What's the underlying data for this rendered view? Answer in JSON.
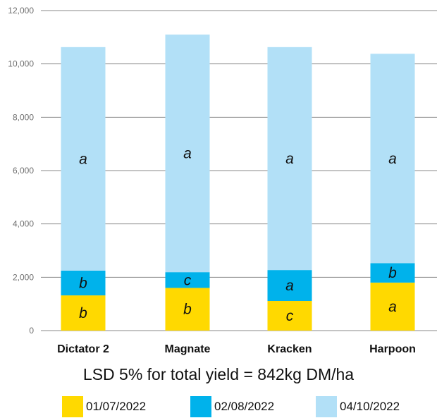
{
  "chart_data": {
    "type": "bar",
    "stacked": true,
    "categories": [
      "Dictator 2",
      "Magnate",
      "Kracken",
      "Harpoon"
    ],
    "series": [
      {
        "name": "01/07/2022",
        "color": "#FFD900",
        "values": [
          1320,
          1600,
          1110,
          1800
        ],
        "letters": [
          "b",
          "b",
          "c",
          "a"
        ]
      },
      {
        "name": "02/08/2022",
        "color": "#00B2EB",
        "values": [
          930,
          590,
          1160,
          730
        ],
        "letters": [
          "b",
          "c",
          "a",
          "b"
        ]
      },
      {
        "name": "04/10/2022",
        "color": "#B2E0F7",
        "values": [
          8380,
          8910,
          8360,
          7850
        ],
        "letters": [
          "a",
          "a",
          "a",
          "a"
        ]
      }
    ],
    "ylim": [
      0,
      12000
    ],
    "yticks": [
      "0",
      "2,000",
      "4,000",
      "6,000",
      "8,000",
      "10,000",
      "12,000"
    ],
    "ytick_values": [
      0,
      2000,
      4000,
      6000,
      8000,
      10000,
      12000
    ],
    "grid": true,
    "legend_placement": "bottom",
    "note": "LSD 5% for total yield = 842kg DM/ha"
  }
}
